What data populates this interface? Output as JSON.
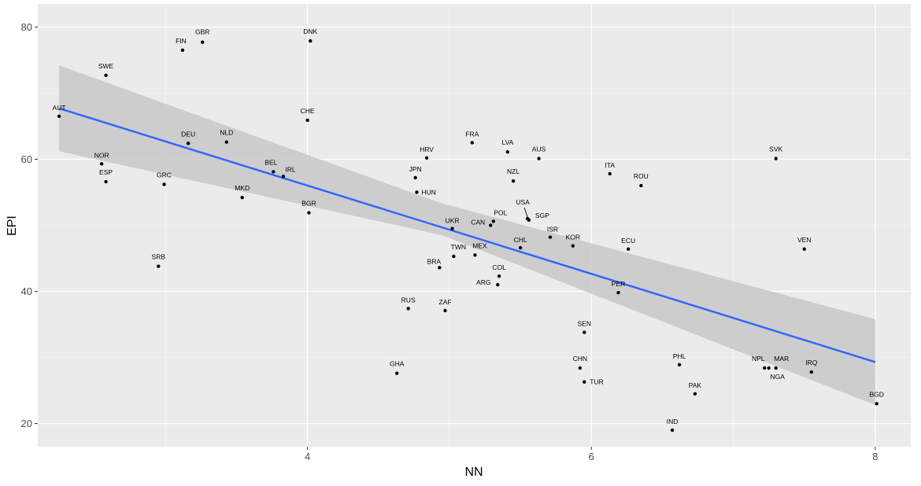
{
  "chart_data": {
    "type": "scatter",
    "title": "",
    "xlabel": "NN",
    "ylabel": "EPI",
    "xlim": [
      2.1,
      8.25
    ],
    "ylim": [
      16.5,
      83.5
    ],
    "x_ticks": [
      4,
      6,
      8
    ],
    "y_ticks": [
      20,
      40,
      60,
      80
    ],
    "x_tick_labels": [
      "4",
      "6",
      "8"
    ],
    "y_tick_labels": [
      "20",
      "40",
      "60",
      "80"
    ],
    "grid": true,
    "legend": "none",
    "colors": {
      "panel_background": "#ebebeb",
      "grid_major": "#ffffff",
      "grid_minor": "#f5f5f5",
      "point": "#000000",
      "fit_line": "#3366ff",
      "confidence_band": "#c8c8c8"
    },
    "fit": {
      "method": "linear",
      "line": [
        {
          "x": 2.25,
          "y": 67.7
        },
        {
          "x": 8.0,
          "y": 29.3
        }
      ],
      "band_upper": [
        {
          "x": 2.25,
          "y": 74.2
        },
        {
          "x": 4.95,
          "y": 53.3
        },
        {
          "x": 8.0,
          "y": 35.8
        }
      ],
      "band_lower": [
        {
          "x": 2.25,
          "y": 61.2
        },
        {
          "x": 4.95,
          "y": 48.5
        },
        {
          "x": 8.0,
          "y": 22.8
        }
      ]
    },
    "points": [
      {
        "label": "AUT",
        "x": 2.25,
        "y": 66.5
      },
      {
        "label": "NOR",
        "x": 2.55,
        "y": 59.3
      },
      {
        "label": "ESP",
        "x": 2.58,
        "y": 56.6
      },
      {
        "label": "SWE",
        "x": 2.58,
        "y": 72.7
      },
      {
        "label": "SRB",
        "x": 2.95,
        "y": 43.8
      },
      {
        "label": "GRC",
        "x": 2.99,
        "y": 56.2
      },
      {
        "label": "FIN",
        "x": 3.12,
        "y": 76.5
      },
      {
        "label": "DEU",
        "x": 3.16,
        "y": 62.4
      },
      {
        "label": "GBR",
        "x": 3.26,
        "y": 77.7
      },
      {
        "label": "NLD",
        "x": 3.43,
        "y": 62.6
      },
      {
        "label": "MKD",
        "x": 3.54,
        "y": 54.2
      },
      {
        "label": "BEL",
        "x": 3.76,
        "y": 58.1
      },
      {
        "label": "IRL",
        "x": 3.83,
        "y": 57.4
      },
      {
        "label": "CHE",
        "x": 4.0,
        "y": 65.9
      },
      {
        "label": "BGR",
        "x": 4.01,
        "y": 51.9
      },
      {
        "label": "DNK",
        "x": 4.02,
        "y": 77.9
      },
      {
        "label": "GHA",
        "x": 4.63,
        "y": 27.6
      },
      {
        "label": "RUS",
        "x": 4.71,
        "y": 37.4
      },
      {
        "label": "JPN",
        "x": 4.76,
        "y": 57.2
      },
      {
        "label": "HUN",
        "x": 4.77,
        "y": 55.0
      },
      {
        "label": "HRV",
        "x": 4.84,
        "y": 60.2
      },
      {
        "label": "BRA",
        "x": 4.93,
        "y": 43.6
      },
      {
        "label": "ZAF",
        "x": 4.97,
        "y": 37.1
      },
      {
        "label": "UKR",
        "x": 5.02,
        "y": 49.5
      },
      {
        "label": "TWN",
        "x": 5.03,
        "y": 45.3
      },
      {
        "label": "FRA",
        "x": 5.16,
        "y": 62.5
      },
      {
        "label": "MEX",
        "x": 5.18,
        "y": 45.5
      },
      {
        "label": "CAN",
        "x": 5.29,
        "y": 50.0
      },
      {
        "label": "POL",
        "x": 5.31,
        "y": 50.6
      },
      {
        "label": "ARG",
        "x": 5.34,
        "y": 41.0
      },
      {
        "label": "COL",
        "x": 5.35,
        "y": 42.3
      },
      {
        "label": "LVA",
        "x": 5.41,
        "y": 61.1
      },
      {
        "label": "NZL",
        "x": 5.45,
        "y": 56.7
      },
      {
        "label": "CHL",
        "x": 5.5,
        "y": 46.6
      },
      {
        "label": "USA",
        "x": 5.55,
        "y": 51.0
      },
      {
        "label": "SGP",
        "x": 5.56,
        "y": 50.8
      },
      {
        "label": "AUS",
        "x": 5.63,
        "y": 60.1
      },
      {
        "label": "ISR",
        "x": 5.71,
        "y": 48.2
      },
      {
        "label": "KOR",
        "x": 5.87,
        "y": 46.9
      },
      {
        "label": "CHN",
        "x": 5.92,
        "y": 28.4
      },
      {
        "label": "SEN",
        "x": 5.95,
        "y": 33.8
      },
      {
        "label": "TUR",
        "x": 5.95,
        "y": 26.3
      },
      {
        "label": "ITA",
        "x": 6.13,
        "y": 57.8
      },
      {
        "label": "PER",
        "x": 6.19,
        "y": 39.8
      },
      {
        "label": "ECU",
        "x": 6.26,
        "y": 46.4
      },
      {
        "label": "ROU",
        "x": 6.35,
        "y": 56.0
      },
      {
        "label": "IND",
        "x": 6.57,
        "y": 19.0
      },
      {
        "label": "PHL",
        "x": 6.62,
        "y": 28.9
      },
      {
        "label": "PAK",
        "x": 6.73,
        "y": 24.5
      },
      {
        "label": "NPL",
        "x": 7.22,
        "y": 28.4
      },
      {
        "label": "NGA",
        "x": 7.25,
        "y": 28.4
      },
      {
        "label": "MAR",
        "x": 7.3,
        "y": 28.4
      },
      {
        "label": "SVK",
        "x": 7.3,
        "y": 60.1
      },
      {
        "label": "VEN",
        "x": 7.5,
        "y": 46.4
      },
      {
        "label": "IRQ",
        "x": 7.55,
        "y": 27.8
      },
      {
        "label": "BGD",
        "x": 8.01,
        "y": 23.0
      }
    ]
  }
}
